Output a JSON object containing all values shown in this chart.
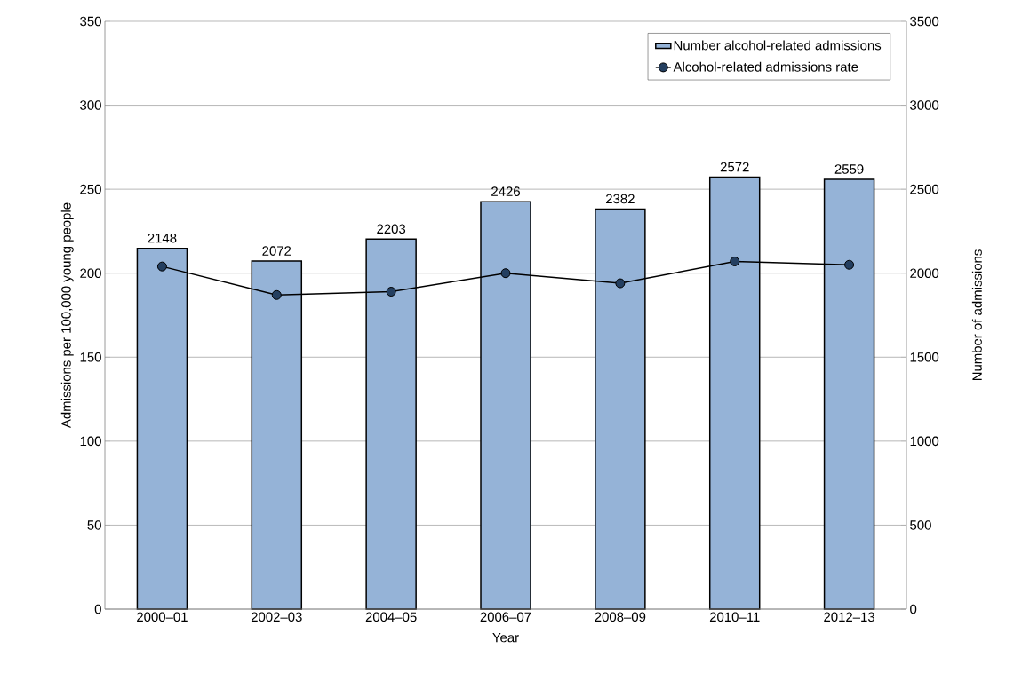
{
  "chart_data": {
    "type": "bar",
    "xlabel": "Year",
    "ylabel": "Admissions per 100,000 young people",
    "y2label": "Number  of admissions",
    "categories": [
      "2000–01",
      "2002–03",
      "2004–05",
      "2006–07",
      "2008–09",
      "2010–11",
      "2012–13"
    ],
    "series": [
      {
        "name": "Number alcohol-related admissions",
        "axis": "y2",
        "color": "#95b3d7",
        "values": [
          2148,
          2072,
          2203,
          2426,
          2382,
          2572,
          2559
        ],
        "value_labels": [
          "2148",
          "2072",
          "2203",
          "2426",
          "2382",
          "2572",
          "2559"
        ]
      },
      {
        "name": "Alcohol-related admissions rate",
        "type": "line",
        "axis": "y",
        "color": "#243f60",
        "values": [
          204,
          187,
          189,
          200,
          194,
          207,
          205
        ]
      }
    ],
    "ylim": [
      0,
      350
    ],
    "yticks": [
      0,
      50,
      100,
      150,
      200,
      250,
      300,
      350
    ],
    "y2lim": [
      0,
      3500
    ],
    "y2ticks": [
      0,
      500,
      1000,
      1500,
      2000,
      2500,
      3000,
      3500
    ],
    "grid": "y",
    "legend": "top right",
    "marker": "circle",
    "line_style": "solid"
  }
}
